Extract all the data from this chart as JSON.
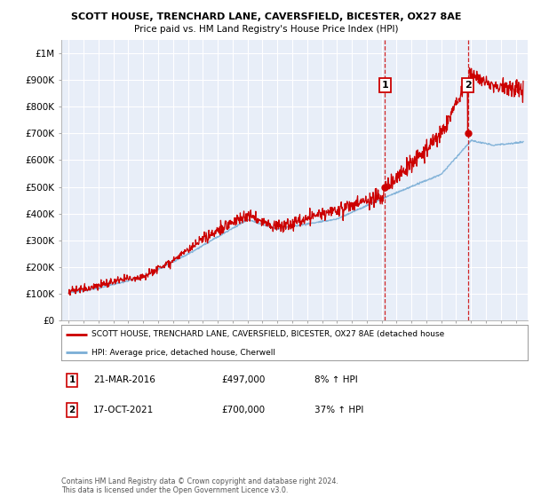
{
  "title": "SCOTT HOUSE, TRENCHARD LANE, CAVERSFIELD, BICESTER, OX27 8AE",
  "subtitle": "Price paid vs. HM Land Registry's House Price Index (HPI)",
  "ylabel_ticks": [
    "£0",
    "£100K",
    "£200K",
    "£300K",
    "£400K",
    "£500K",
    "£600K",
    "£700K",
    "£800K",
    "£900K",
    "£1M"
  ],
  "ylim": [
    0,
    1050000
  ],
  "yticks": [
    0,
    100000,
    200000,
    300000,
    400000,
    500000,
    600000,
    700000,
    800000,
    900000,
    1000000
  ],
  "xlim_start": 1994.5,
  "xlim_end": 2025.8,
  "plot_bg_color": "#e8eef8",
  "red_line_color": "#cc0000",
  "blue_line_color": "#7aaed6",
  "grid_color": "#ffffff",
  "transaction1_x": 2016.22,
  "transaction1_y": 497000,
  "transaction2_x": 2021.79,
  "transaction2_y": 700000,
  "legend_line1": "SCOTT HOUSE, TRENCHARD LANE, CAVERSFIELD, BICESTER, OX27 8AE (detached house",
  "legend_line2": "HPI: Average price, detached house, Cherwell",
  "footnote1_label": "1",
  "footnote1_date": "21-MAR-2016",
  "footnote1_price": "£497,000",
  "footnote1_hpi": "8% ↑ HPI",
  "footnote2_label": "2",
  "footnote2_date": "17-OCT-2021",
  "footnote2_price": "£700,000",
  "footnote2_hpi": "37% ↑ HPI",
  "copyright": "Contains HM Land Registry data © Crown copyright and database right 2024.\nThis data is licensed under the Open Government Licence v3.0."
}
